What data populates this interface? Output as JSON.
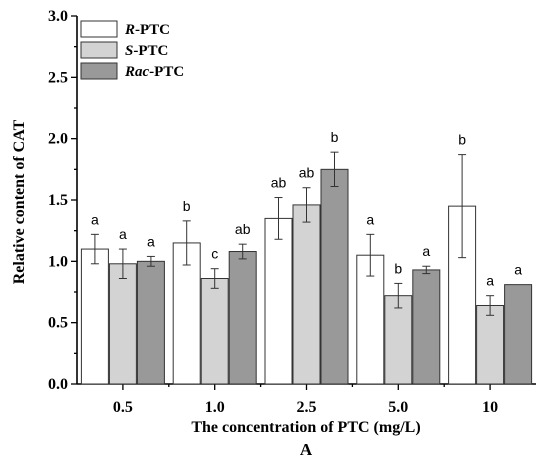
{
  "chart_data": {
    "type": "bar",
    "panel_label": "A",
    "xlabel": "The concentration of PTC (mg/L)",
    "ylabel": "Relative content of CAT",
    "ylim": [
      0,
      3.0
    ],
    "yticks": [
      "0.0",
      "0.5",
      "1.0",
      "1.5",
      "2.0",
      "2.5",
      "3.0"
    ],
    "categories": [
      "0.5",
      "1.0",
      "2.5",
      "5.0",
      "10"
    ],
    "legend_position": "top-left",
    "series": [
      {
        "name_italic": "R",
        "name_rest": "-PTC",
        "color": "#ffffff",
        "values": [
          1.1,
          1.15,
          1.35,
          1.05,
          1.45
        ],
        "errors": [
          0.12,
          0.18,
          0.17,
          0.17,
          0.42
        ],
        "labels": [
          "a",
          "b",
          "ab",
          "a",
          "b"
        ]
      },
      {
        "name_italic": "S",
        "name_rest": "-PTC",
        "color": "#d3d3d3",
        "values": [
          0.98,
          0.86,
          1.46,
          0.72,
          0.64
        ],
        "errors": [
          0.12,
          0.08,
          0.14,
          0.1,
          0.08
        ],
        "labels": [
          "a",
          "c",
          "ab",
          "b",
          "a"
        ]
      },
      {
        "name_italic": "Rac",
        "name_rest": "-PTC",
        "color": "#999999",
        "values": [
          1.0,
          1.08,
          1.75,
          0.93,
          0.81
        ],
        "errors": [
          0.04,
          0.06,
          0.14,
          0.03,
          0.0
        ],
        "labels": [
          "a",
          "ab",
          "b",
          "a",
          "a"
        ]
      }
    ]
  }
}
